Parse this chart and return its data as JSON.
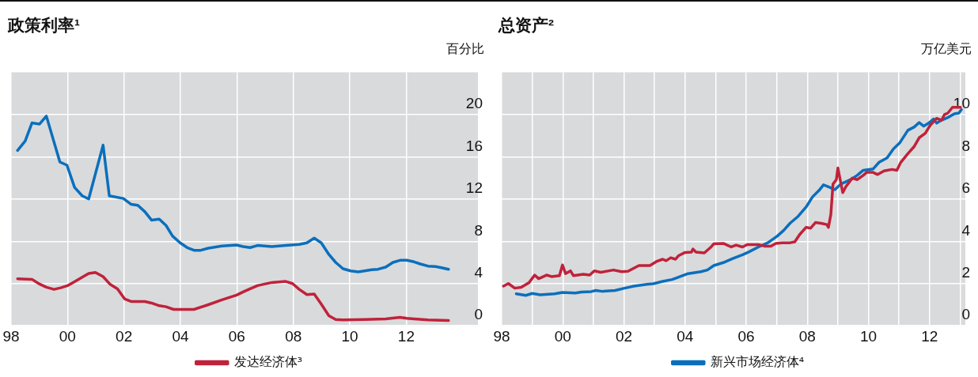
{
  "chart_data": [
    {
      "type": "line",
      "title": "政策利率¹",
      "ylabel": "百分比",
      "xlim": [
        1998,
        2014.54
      ],
      "ylim": [
        0,
        24
      ],
      "yticks": [
        0,
        4,
        8,
        12,
        16,
        20
      ],
      "xticks": [
        {
          "value": 1998,
          "label": "98"
        },
        {
          "value": 2000,
          "label": "00"
        },
        {
          "value": 2002,
          "label": "02"
        },
        {
          "value": 2004,
          "label": "04"
        },
        {
          "value": 2006,
          "label": "06"
        },
        {
          "value": 2008,
          "label": "08"
        },
        {
          "value": 2010,
          "label": "10"
        },
        {
          "value": 2012,
          "label": "12"
        }
      ],
      "grid": true,
      "legend": "bottom",
      "marker": "none",
      "line_style": "solid",
      "series": [
        {
          "color": "#0a6fbd",
          "x": [
            1998.23,
            1998.5,
            1998.74,
            1999.01,
            1999.25,
            1999.73,
            1999.98,
            2000.25,
            2000.52,
            2000.75,
            2001.26,
            2001.48,
            2001.98,
            2002.25,
            2002.49,
            2002.74,
            2002.98,
            2003.25,
            2003.49,
            2003.72,
            2003.99,
            2004.24,
            2004.48,
            2004.72,
            2004.99,
            2005.47,
            2005.99,
            2006.22,
            2006.47,
            2006.73,
            2007.24,
            2007.73,
            2008.21,
            2008.48,
            2008.74,
            2008.99,
            2009.26,
            2009.5,
            2009.76,
            2010.03,
            2010.3,
            2010.52,
            2010.78,
            2011.0,
            2011.27,
            2011.53,
            2011.78,
            2012.02,
            2012.28,
            2012.5,
            2012.77,
            2013.04,
            2013.25,
            2013.5
          ],
          "values": [
            16.6,
            17.5,
            19.2,
            19.1,
            19.85,
            15.5,
            15.2,
            13.1,
            12.3,
            12.0,
            17.1,
            12.3,
            12.05,
            11.5,
            11.4,
            10.8,
            10.0,
            10.1,
            9.5,
            8.5,
            7.85,
            7.4,
            7.15,
            7.15,
            7.35,
            7.55,
            7.65,
            7.5,
            7.4,
            7.6,
            7.5,
            7.6,
            7.7,
            7.85,
            8.3,
            7.85,
            6.75,
            6.0,
            5.4,
            5.2,
            5.1,
            5.2,
            5.3,
            5.35,
            5.55,
            6.0,
            6.2,
            6.2,
            6.05,
            5.85,
            5.65,
            5.6,
            5.5,
            5.35
          ]
        },
        {
          "name": "发达经济体³",
          "color": "#c0223a",
          "x": [
            1998.23,
            1998.74,
            1999.01,
            1999.25,
            1999.52,
            1999.76,
            2000.0,
            2000.27,
            2000.52,
            2000.75,
            2000.99,
            2001.26,
            2001.5,
            2001.77,
            2002.02,
            2002.25,
            2002.74,
            2002.98,
            2003.25,
            2003.49,
            2003.76,
            2004.48,
            2004.99,
            2005.47,
            2005.99,
            2006.22,
            2006.47,
            2006.73,
            2007.24,
            2007.73,
            2007.97,
            2008.21,
            2008.48,
            2008.74,
            2008.99,
            2009.26,
            2009.5,
            2009.76,
            2010.52,
            2011.27,
            2011.78,
            2012.02,
            2012.28,
            2012.77,
            2013.5
          ],
          "values": [
            4.45,
            4.4,
            3.95,
            3.65,
            3.45,
            3.6,
            3.8,
            4.2,
            4.6,
            4.95,
            5.05,
            4.65,
            3.95,
            3.5,
            2.55,
            2.3,
            2.3,
            2.15,
            1.9,
            1.8,
            1.55,
            1.55,
            2.0,
            2.45,
            2.9,
            3.2,
            3.5,
            3.8,
            4.1,
            4.2,
            4.0,
            3.45,
            2.95,
            3.0,
            2.05,
            0.95,
            0.6,
            0.55,
            0.6,
            0.65,
            0.8,
            0.7,
            0.65,
            0.55,
            0.5
          ]
        }
      ]
    },
    {
      "type": "line",
      "title": "总资产²",
      "ylabel": "万亿美元",
      "xlim": [
        1998,
        2013.17
      ],
      "ylim": [
        0,
        12
      ],
      "yticks": [
        0,
        2,
        4,
        6,
        8,
        10
      ],
      "xticks": [
        {
          "value": 1998,
          "label": "98"
        },
        {
          "value": 2000,
          "label": "00"
        },
        {
          "value": 2002,
          "label": "02"
        },
        {
          "value": 2004,
          "label": "04"
        },
        {
          "value": 2006,
          "label": "06"
        },
        {
          "value": 2008,
          "label": "08"
        },
        {
          "value": 2010,
          "label": "10"
        },
        {
          "value": 2012,
          "label": "12"
        },
        {
          "value": 1999,
          "label": null
        },
        {
          "value": 2001,
          "label": null
        },
        {
          "value": 2003,
          "label": null
        },
        {
          "value": 2005,
          "label": null
        },
        {
          "value": 2007,
          "label": null
        },
        {
          "value": 2009,
          "label": null
        },
        {
          "value": 2011,
          "label": null
        },
        {
          "value": 2013,
          "label": null
        }
      ],
      "grid": true,
      "legend": "bottom",
      "marker": "none",
      "line_style": "solid",
      "series": [
        {
          "color": "#c0223a",
          "x": [
            1998.06,
            1998.22,
            1998.43,
            1998.64,
            1998.9,
            1999.08,
            1999.21,
            1999.47,
            1999.63,
            1999.89,
            1999.99,
            2000.09,
            2000.25,
            2000.35,
            2000.67,
            2000.88,
            2001.03,
            2001.24,
            2001.66,
            2001.92,
            2002.13,
            2002.49,
            2002.85,
            2003.06,
            2003.27,
            2003.38,
            2003.53,
            2003.69,
            2003.79,
            2004.0,
            2004.21,
            2004.26,
            2004.36,
            2004.63,
            2004.83,
            2004.94,
            2005.25,
            2005.51,
            2005.67,
            2005.88,
            2006.03,
            2006.4,
            2006.6,
            2006.81,
            2006.97,
            2007.18,
            2007.44,
            2007.59,
            2007.75,
            2007.96,
            2008.11,
            2008.27,
            2008.48,
            2008.64,
            2008.69,
            2008.77,
            2008.84,
            2008.95,
            2009.0,
            2009.16,
            2009.26,
            2009.47,
            2009.63,
            2009.83,
            2009.94,
            2010.15,
            2010.3,
            2010.51,
            2010.77,
            2010.93,
            2011.06,
            2011.29,
            2011.5,
            2011.66,
            2011.86,
            2012.02,
            2012.23,
            2012.39,
            2012.49,
            2012.6,
            2012.75,
            2013.01
          ],
          "values": [
            1.88,
            2.0,
            1.78,
            1.82,
            2.05,
            2.4,
            2.23,
            2.4,
            2.33,
            2.37,
            2.88,
            2.47,
            2.6,
            2.37,
            2.44,
            2.4,
            2.6,
            2.53,
            2.64,
            2.56,
            2.58,
            2.85,
            2.85,
            3.04,
            3.15,
            3.08,
            3.22,
            3.15,
            3.32,
            3.47,
            3.49,
            3.63,
            3.49,
            3.45,
            3.7,
            3.88,
            3.9,
            3.73,
            3.82,
            3.73,
            3.84,
            3.84,
            3.77,
            3.77,
            3.9,
            3.93,
            3.93,
            3.97,
            4.32,
            4.66,
            4.62,
            4.89,
            4.84,
            4.79,
            4.66,
            5.27,
            6.71,
            6.92,
            7.47,
            6.3,
            6.58,
            6.99,
            6.92,
            7.12,
            7.26,
            7.26,
            7.16,
            7.33,
            7.4,
            7.36,
            7.74,
            8.15,
            8.49,
            8.9,
            9.11,
            9.49,
            9.82,
            9.73,
            10.0,
            10.07,
            10.34,
            10.34
          ]
        },
        {
          "name": "新兴市场经济体⁴",
          "color": "#0a6fbd",
          "x": [
            1998.48,
            1998.79,
            1999.0,
            1999.26,
            1999.73,
            1999.99,
            2000.41,
            2000.61,
            2000.93,
            2001.08,
            2001.29,
            2001.71,
            2002.02,
            2002.33,
            2002.75,
            2002.96,
            2003.27,
            2003.58,
            2003.79,
            2004.1,
            2004.52,
            2004.73,
            2004.94,
            2005.25,
            2005.56,
            2005.88,
            2006.08,
            2006.4,
            2006.71,
            2007.02,
            2007.23,
            2007.44,
            2007.7,
            2007.96,
            2008.17,
            2008.38,
            2008.53,
            2008.74,
            2008.9,
            2009.1,
            2009.42,
            2009.63,
            2009.83,
            2010.15,
            2010.35,
            2010.61,
            2010.82,
            2011.03,
            2011.29,
            2011.5,
            2011.66,
            2011.81,
            2011.97,
            2012.13,
            2012.23,
            2012.39,
            2012.6,
            2012.81,
            2012.96,
            2013.04
          ],
          "values": [
            1.51,
            1.44,
            1.53,
            1.47,
            1.51,
            1.58,
            1.55,
            1.6,
            1.62,
            1.67,
            1.63,
            1.67,
            1.78,
            1.88,
            1.96,
            1.99,
            2.1,
            2.19,
            2.3,
            2.47,
            2.56,
            2.64,
            2.85,
            2.99,
            3.18,
            3.36,
            3.49,
            3.73,
            3.93,
            4.25,
            4.52,
            4.86,
            5.18,
            5.62,
            6.1,
            6.4,
            6.67,
            6.55,
            6.44,
            6.71,
            6.92,
            7.12,
            7.36,
            7.42,
            7.74,
            7.95,
            8.38,
            8.67,
            9.25,
            9.41,
            9.62,
            9.45,
            9.59,
            9.79,
            9.59,
            9.73,
            9.86,
            10.03,
            10.07,
            10.23
          ]
        }
      ]
    }
  ]
}
